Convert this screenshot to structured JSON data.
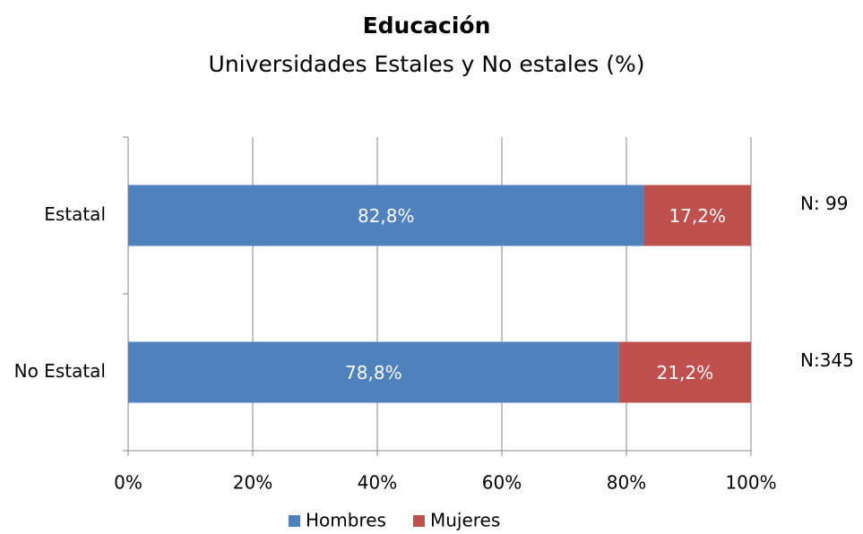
{
  "chart_data": {
    "type": "stacked_barh",
    "title": "Educación",
    "subtitle": "Universidades Estales y No estales (%)",
    "categories": [
      "Estatal",
      "No Estatal"
    ],
    "series": [
      {
        "name": "Hombres",
        "color": "#4f81bd",
        "values": [
          82.8,
          78.8
        ],
        "value_labels": [
          "82,8%",
          "78,8%"
        ]
      },
      {
        "name": "Mujeres",
        "color": "#c0504d",
        "values": [
          17.2,
          21.2
        ],
        "value_labels": [
          "17,2%",
          "21,2%"
        ]
      }
    ],
    "annotations": [
      "N: 99",
      "N:345"
    ],
    "xlim": [
      0,
      100
    ],
    "xticks": [
      {
        "value": 0,
        "label": "0%"
      },
      {
        "value": 20,
        "label": "20%"
      },
      {
        "value": 40,
        "label": "40%"
      },
      {
        "value": 60,
        "label": "60%"
      },
      {
        "value": 80,
        "label": "80%"
      },
      {
        "value": 100,
        "label": "100%"
      }
    ],
    "grid": true,
    "legend": "bottom"
  }
}
